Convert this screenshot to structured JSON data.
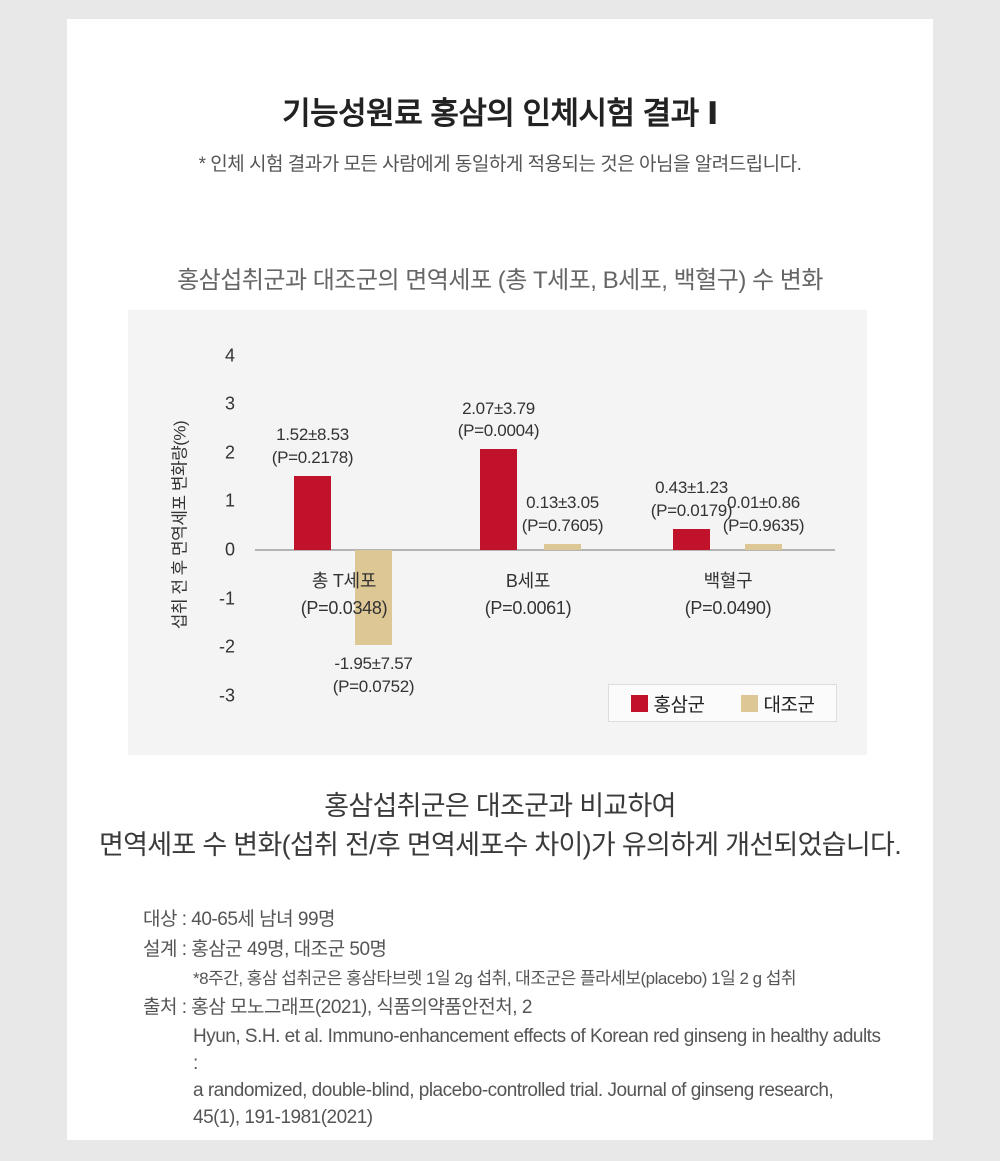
{
  "header": {
    "title": "기능성원료 홍삼의 인체시험 결과 Ⅰ",
    "disclaimer": "* 인체 시험 결과가 모든 사람에게 동일하게 적용되는 것은 아님을 알려드립니다."
  },
  "chart_data": {
    "type": "bar",
    "title": "홍삼섭취군과 대조군의 면역세포 (총 T세포, B세포, 백혈구) 수 변화",
    "ylabel": "섭취 전 후 면역세포 변화량(%)",
    "ylim": [
      -3,
      4
    ],
    "yticks": [
      4,
      3,
      2,
      1,
      0,
      -1,
      -2,
      -3
    ],
    "grid": false,
    "legend_position": "bottom-right",
    "categories": [
      "총 T세포",
      "B세포",
      "백혈구"
    ],
    "category_pvalues": [
      "(P=0.0348)",
      "(P=0.0061)",
      "(P=0.0490)"
    ],
    "series": [
      {
        "name": "홍삼군",
        "color": "#c1122c",
        "values": [
          1.52,
          2.07,
          0.43
        ],
        "value_labels": [
          "1.52±8.53",
          "2.07±3.79",
          "0.43±1.23"
        ],
        "pvalues": [
          "(P=0.2178)",
          "(P=0.0004)",
          "(P=0.0179)"
        ]
      },
      {
        "name": "대조군",
        "color": "#ddc795",
        "values": [
          -1.95,
          0.13,
          0.01
        ],
        "value_labels": [
          "-1.95±7.57",
          "0.13±3.05",
          "0.01±0.86"
        ],
        "pvalues": [
          "(P=0.0752)",
          "(P=0.7605)",
          "(P=0.9635)"
        ]
      }
    ]
  },
  "summary": {
    "line1": "홍삼섭취군은 대조군과 비교하여",
    "line2": "면역세포 수 변화(섭취 전/후 면역세포수 차이)가 유의하게 개선되었습니다."
  },
  "details": {
    "subject": "대상 : 40-65세 남녀 99명",
    "design": "설계 : 홍삼군 49명, 대조군 50명",
    "design_note": "*8주간, 홍삼 섭취군은 홍삼타브렛 1일 2g 섭취, 대조군은 플라세보(placebo) 1일 2 g 섭취",
    "source": "출처 : 홍삼 모노그래프(2021), 식품의약품안전처, 2",
    "reference_line1": "Hyun, S.H. et al. Immuno-enhancement effects of Korean red ginseng in healthy adults :",
    "reference_line2": "a randomized, double-blind, placebo-controlled trial. Journal of ginseng research,",
    "reference_line3": "45(1), 191-1981(2021)"
  }
}
